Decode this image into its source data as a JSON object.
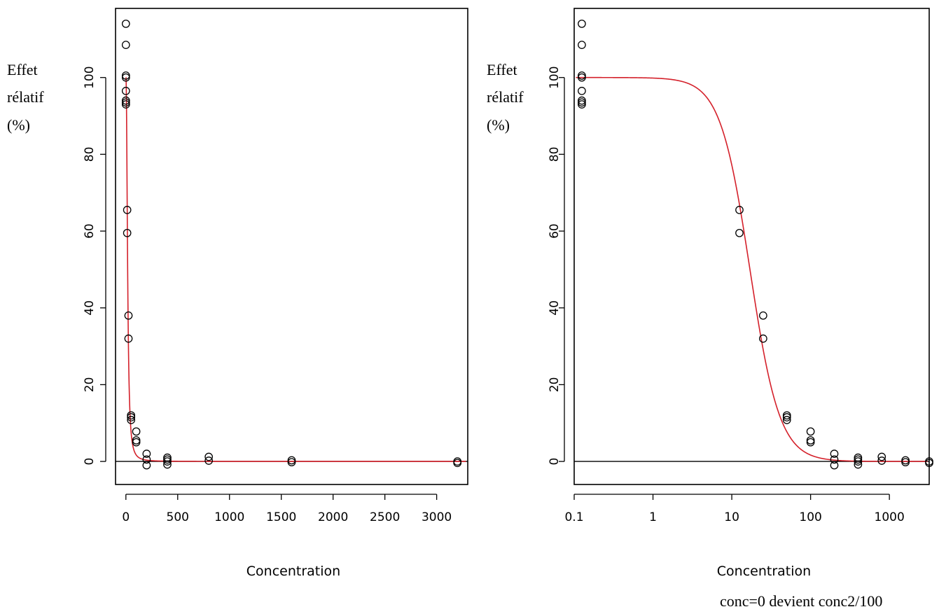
{
  "chart_data": [
    {
      "type": "scatter",
      "xscale": "linear",
      "xlim": [
        -100,
        3300
      ],
      "ylim": [
        -6,
        118
      ],
      "ylabel_lines": [
        "Effet",
        "rélatif",
        "(%)"
      ],
      "xlabel": "Concentration",
      "note": "",
      "x_ticks": [
        0,
        500,
        1000,
        1500,
        2000,
        2500,
        3000
      ],
      "x_tick_labels": [
        "0",
        "500",
        "1000",
        "1500",
        "2000",
        "2500",
        "3000"
      ],
      "y_ticks": [
        0,
        20,
        40,
        60,
        80,
        100
      ],
      "y_tick_labels": [
        "0",
        "20",
        "40",
        "60",
        "80",
        "100"
      ],
      "reference_line_y": 0,
      "curve_color": "#d4202a",
      "fit": {
        "model": "log-logistic",
        "top": 100,
        "bottom": 0,
        "ec50": 17,
        "hill": 2.3
      },
      "points": [
        {
          "x": 0,
          "y": 114
        },
        {
          "x": 0,
          "y": 108.5
        },
        {
          "x": 0,
          "y": 100.5
        },
        {
          "x": 0,
          "y": 100
        },
        {
          "x": 0,
          "y": 96.5
        },
        {
          "x": 0,
          "y": 94
        },
        {
          "x": 0,
          "y": 93.5
        },
        {
          "x": 0,
          "y": 93
        },
        {
          "x": 12.5,
          "y": 65.5
        },
        {
          "x": 12.5,
          "y": 59.5
        },
        {
          "x": 25,
          "y": 38
        },
        {
          "x": 25,
          "y": 32
        },
        {
          "x": 50,
          "y": 12
        },
        {
          "x": 50,
          "y": 11.5
        },
        {
          "x": 50,
          "y": 10.8
        },
        {
          "x": 100,
          "y": 7.8
        },
        {
          "x": 100,
          "y": 5.5
        },
        {
          "x": 100,
          "y": 5
        },
        {
          "x": 200,
          "y": 2
        },
        {
          "x": 200,
          "y": 0.5
        },
        {
          "x": 200,
          "y": -1
        },
        {
          "x": 400,
          "y": 1
        },
        {
          "x": 400,
          "y": 0.5
        },
        {
          "x": 400,
          "y": 0
        },
        {
          "x": 400,
          "y": -0.8
        },
        {
          "x": 800,
          "y": 1.2
        },
        {
          "x": 800,
          "y": 0.2
        },
        {
          "x": 1600,
          "y": 0.3
        },
        {
          "x": 1600,
          "y": -0.2
        },
        {
          "x": 3200,
          "y": 0
        },
        {
          "x": 3200,
          "y": -0.4
        }
      ]
    },
    {
      "type": "scatter",
      "xscale": "log",
      "xlim": [
        0.1,
        3200
      ],
      "ylim": [
        -6,
        118
      ],
      "ylabel_lines": [
        "Effet",
        "rélatif",
        "(%)"
      ],
      "xlabel": "Concentration",
      "note": "conc=0 devient conc2/100",
      "x_ticks": [
        0.1,
        1,
        10,
        100,
        1000
      ],
      "x_tick_labels": [
        "0.1",
        "1",
        "10",
        "100",
        "1000"
      ],
      "y_ticks": [
        0,
        20,
        40,
        60,
        80,
        100
      ],
      "y_tick_labels": [
        "0",
        "20",
        "40",
        "60",
        "80",
        "100"
      ],
      "reference_line_y": 0,
      "curve_color": "#d4202a",
      "fit": {
        "model": "log-logistic",
        "top": 100,
        "bottom": 0,
        "ec50": 17,
        "hill": 2.3
      },
      "points": [
        {
          "x": 0.125,
          "y": 114
        },
        {
          "x": 0.125,
          "y": 108.5
        },
        {
          "x": 0.125,
          "y": 100.5
        },
        {
          "x": 0.125,
          "y": 100
        },
        {
          "x": 0.125,
          "y": 96.5
        },
        {
          "x": 0.125,
          "y": 94
        },
        {
          "x": 0.125,
          "y": 93.5
        },
        {
          "x": 0.125,
          "y": 93
        },
        {
          "x": 12.5,
          "y": 65.5
        },
        {
          "x": 12.5,
          "y": 59.5
        },
        {
          "x": 25,
          "y": 38
        },
        {
          "x": 25,
          "y": 32
        },
        {
          "x": 50,
          "y": 12
        },
        {
          "x": 50,
          "y": 11.5
        },
        {
          "x": 50,
          "y": 10.8
        },
        {
          "x": 100,
          "y": 7.8
        },
        {
          "x": 100,
          "y": 5.5
        },
        {
          "x": 100,
          "y": 5
        },
        {
          "x": 200,
          "y": 2
        },
        {
          "x": 200,
          "y": 0.5
        },
        {
          "x": 200,
          "y": -1
        },
        {
          "x": 400,
          "y": 1
        },
        {
          "x": 400,
          "y": 0.5
        },
        {
          "x": 400,
          "y": 0
        },
        {
          "x": 400,
          "y": -0.8
        },
        {
          "x": 800,
          "y": 1.2
        },
        {
          "x": 800,
          "y": 0.2
        },
        {
          "x": 1600,
          "y": 0.3
        },
        {
          "x": 1600,
          "y": -0.2
        },
        {
          "x": 3200,
          "y": 0
        },
        {
          "x": 3200,
          "y": -0.4
        }
      ]
    }
  ]
}
